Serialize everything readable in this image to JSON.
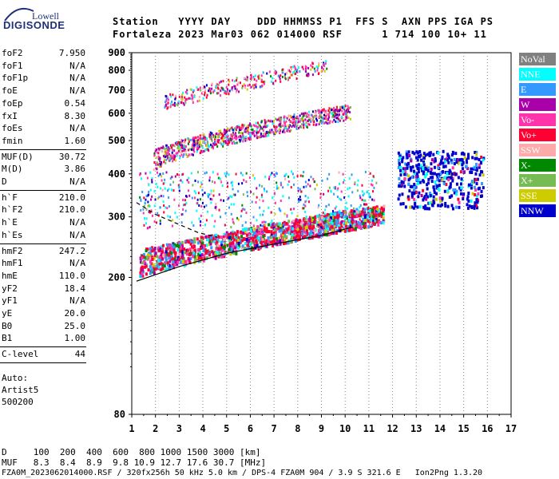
{
  "logo": {
    "line1": "Lowell",
    "line2": "DIGISONDE"
  },
  "header": {
    "row1": "Station   YYYY DAY    DDD HHMMSS P1  FFS S  AXN PPS IGA PS",
    "row2": "Fortaleza 2023 Mar03 062 014000 RSF      1 714 100 10+ 11"
  },
  "params_group1": [
    {
      "k": "foF2",
      "v": "7.950"
    },
    {
      "k": "foF1",
      "v": "N/A"
    },
    {
      "k": "foF1p",
      "v": "N/A"
    },
    {
      "k": "foE",
      "v": "N/A"
    },
    {
      "k": "foEp",
      "v": "0.54"
    },
    {
      "k": "fxI",
      "v": "8.30"
    },
    {
      "k": "foEs",
      "v": "N/A"
    },
    {
      "k": "fmin",
      "v": "1.60"
    }
  ],
  "params_group2": [
    {
      "k": "MUF(D)",
      "v": "30.72"
    },
    {
      "k": "M(D)",
      "v": "3.86"
    },
    {
      "k": "D",
      "v": "N/A"
    }
  ],
  "params_group3": [
    {
      "k": "h`F",
      "v": "210.0"
    },
    {
      "k": "h`F2",
      "v": "210.0"
    },
    {
      "k": "h`E",
      "v": "N/A"
    },
    {
      "k": "h`Es",
      "v": "N/A"
    }
  ],
  "params_group4": [
    {
      "k": "hmF2",
      "v": "247.2"
    },
    {
      "k": "hmF1",
      "v": "N/A"
    },
    {
      "k": "hmE",
      "v": "110.0"
    },
    {
      "k": "yF2",
      "v": "18.4"
    },
    {
      "k": "yF1",
      "v": "N/A"
    },
    {
      "k": "yE",
      "v": "20.0"
    },
    {
      "k": "B0",
      "v": "25.0"
    },
    {
      "k": "B1",
      "v": "1.00"
    }
  ],
  "clevel": {
    "k": "C-level",
    "v": "44"
  },
  "auto": {
    "line1": "Auto:",
    "line2": "Artist5",
    "line3": "500200"
  },
  "footer": {
    "d_row": "D     100  200  400  600  800 1000 1500 3000 [km]",
    "muf_row": "MUF   8.3  8.4  8.9  9.8 10.9 12.7 17.6 30.7 [MHz]",
    "file_row": "FZA0M_2023062014000.RSF / 320fx256h 50 kHz 5.0 km / DPS-4 FZA0M 904 / 3.9 S 321.6 E   Ion2Png 1.3.20"
  },
  "legend": [
    {
      "label": "NoVal",
      "color": "#808080"
    },
    {
      "label": "NNE",
      "color": "#00ffff"
    },
    {
      "label": "E",
      "color": "#3399ff"
    },
    {
      "label": "W",
      "color": "#aa00aa"
    },
    {
      "label": "Vo-",
      "color": "#ff33aa"
    },
    {
      "label": "Vo+",
      "color": "#ff0033"
    },
    {
      "label": "SSW",
      "color": "#ffaaaa"
    },
    {
      "label": "X-",
      "color": "#008800"
    },
    {
      "label": "X+",
      "color": "#77bb55"
    },
    {
      "label": "SSE",
      "color": "#cccc00"
    },
    {
      "label": "NNW",
      "color": "#0000cc"
    }
  ],
  "chart_data": {
    "type": "scatter",
    "title": "",
    "xlabel": "",
    "ylabel": "",
    "xlim": [
      1,
      17
    ],
    "ylim": [
      80,
      900
    ],
    "y_scale": "log",
    "x_ticks": [
      1,
      2,
      3,
      4,
      5,
      6,
      7,
      8,
      9,
      10,
      11,
      12,
      13,
      14,
      15,
      16,
      17
    ],
    "y_ticks": [
      80,
      200,
      300,
      400,
      500,
      600,
      700,
      800,
      900
    ],
    "grid": "dotted vertical",
    "traces": [
      {
        "name": "F layer O-trace",
        "x_start": 1.3,
        "x_end": 11.6,
        "h_start": 215,
        "h_end": 300
      },
      {
        "name": "F layer second hop",
        "x_start": 1.9,
        "x_end": 10.2,
        "h_start": 440,
        "h_end": 610
      },
      {
        "name": "F layer third hop",
        "x_start": 2.3,
        "x_end": 9.2,
        "h_start": 650,
        "h_end": 830
      },
      {
        "name": "spread F cluster",
        "x_start": 12.2,
        "x_end": 15.8,
        "h_start": 320,
        "h_end": 470
      }
    ],
    "profile": {
      "solid": [
        [
          1.2,
          195
        ],
        [
          3,
          215
        ],
        [
          5,
          235
        ],
        [
          7,
          250
        ],
        [
          9,
          265
        ],
        [
          10.3,
          280
        ]
      ],
      "dashed": [
        [
          1.2,
          330
        ],
        [
          2,
          305
        ],
        [
          3,
          285
        ],
        [
          3.8,
          270
        ],
        [
          4.6,
          262
        ]
      ]
    }
  }
}
